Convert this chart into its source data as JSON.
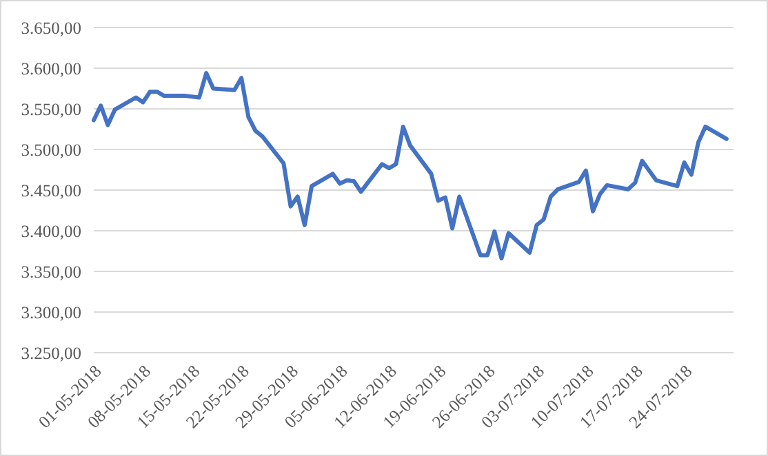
{
  "chart_data": {
    "type": "line",
    "x": [
      "2018-05-01",
      "2018-05-02",
      "2018-05-03",
      "2018-05-04",
      "2018-05-07",
      "2018-05-08",
      "2018-05-09",
      "2018-05-10",
      "2018-05-11",
      "2018-05-14",
      "2018-05-16",
      "2018-05-17",
      "2018-05-18",
      "2018-05-21",
      "2018-05-22",
      "2018-05-23",
      "2018-05-24",
      "2018-05-25",
      "2018-05-28",
      "2018-05-29",
      "2018-05-30",
      "2018-05-31",
      "2018-06-01",
      "2018-06-04",
      "2018-06-05",
      "2018-06-06",
      "2018-06-07",
      "2018-06-08",
      "2018-06-11",
      "2018-06-12",
      "2018-06-13",
      "2018-06-14",
      "2018-06-15",
      "2018-06-18",
      "2018-06-19",
      "2018-06-20",
      "2018-06-21",
      "2018-06-22",
      "2018-06-25",
      "2018-06-26",
      "2018-06-27",
      "2018-06-28",
      "2018-06-29",
      "2018-07-02",
      "2018-07-03",
      "2018-07-04",
      "2018-07-05",
      "2018-07-06",
      "2018-07-09",
      "2018-07-10",
      "2018-07-11",
      "2018-07-12",
      "2018-07-13",
      "2018-07-16",
      "2018-07-17",
      "2018-07-18",
      "2018-07-20",
      "2018-07-23",
      "2018-07-24",
      "2018-07-25",
      "2018-07-26",
      "2018-07-27",
      "2018-07-30"
    ],
    "series": [
      {
        "color": "#4472c4",
        "values": [
          3536,
          3554,
          3530,
          3549,
          3564,
          3558,
          3571,
          3571,
          3566,
          3566,
          3564,
          3594,
          3575,
          3573,
          3588,
          3540,
          3523,
          3516,
          3483,
          3430,
          3442,
          3407,
          3455,
          3470,
          3458,
          3462,
          3461,
          3448,
          3482,
          3477,
          3482,
          3528,
          3505,
          3470,
          3437,
          3441,
          3403,
          3442,
          3370,
          3370,
          3399,
          3366,
          3397,
          3373,
          3407,
          3414,
          3442,
          3451,
          3460,
          3474,
          3424,
          3445,
          3456,
          3451,
          3459,
          3486,
          3462,
          3455,
          3484,
          3469,
          3509,
          3528,
          3513
        ]
      }
    ],
    "xlim": [
      "2018-05-01",
      "2018-07-31"
    ],
    "xticks": [
      {
        "value": "2018-05-01",
        "label": "01-05-2018"
      },
      {
        "value": "2018-05-08",
        "label": "08-05-2018"
      },
      {
        "value": "2018-05-15",
        "label": "15-05-2018"
      },
      {
        "value": "2018-05-22",
        "label": "22-05-2018"
      },
      {
        "value": "2018-05-29",
        "label": "29-05-2018"
      },
      {
        "value": "2018-06-05",
        "label": "05-06-2018"
      },
      {
        "value": "2018-06-12",
        "label": "12-06-2018"
      },
      {
        "value": "2018-06-19",
        "label": "19-06-2018"
      },
      {
        "value": "2018-06-26",
        "label": "26-06-2018"
      },
      {
        "value": "2018-07-03",
        "label": "03-07-2018"
      },
      {
        "value": "2018-07-10",
        "label": "10-07-2018"
      },
      {
        "value": "2018-07-17",
        "label": "17-07-2018"
      },
      {
        "value": "2018-07-24",
        "label": "24-07-2018"
      }
    ],
    "ylim": [
      3250,
      3650
    ],
    "yticks": [
      {
        "value": 3250,
        "label": "3.250,00"
      },
      {
        "value": 3300,
        "label": "3.300,00"
      },
      {
        "value": 3350,
        "label": "3.350,00"
      },
      {
        "value": 3400,
        "label": "3.400,00"
      },
      {
        "value": 3450,
        "label": "3.450,00"
      },
      {
        "value": 3500,
        "label": "3.500,00"
      },
      {
        "value": 3550,
        "label": "3.550,00"
      },
      {
        "value": 3600,
        "label": "3.600,00"
      },
      {
        "value": 3650,
        "label": "3.650,00"
      }
    ],
    "grid": "y",
    "marker": "none",
    "line_style": "solid"
  }
}
